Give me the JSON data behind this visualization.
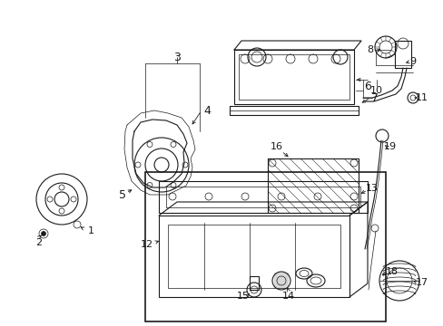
{
  "bg_color": "#ffffff",
  "line_color": "#1a1a1a",
  "fig_width": 4.89,
  "fig_height": 3.6,
  "dpi": 100,
  "font_size": 9,
  "lw_main": 0.8,
  "lw_thin": 0.5,
  "lw_thick": 1.2
}
